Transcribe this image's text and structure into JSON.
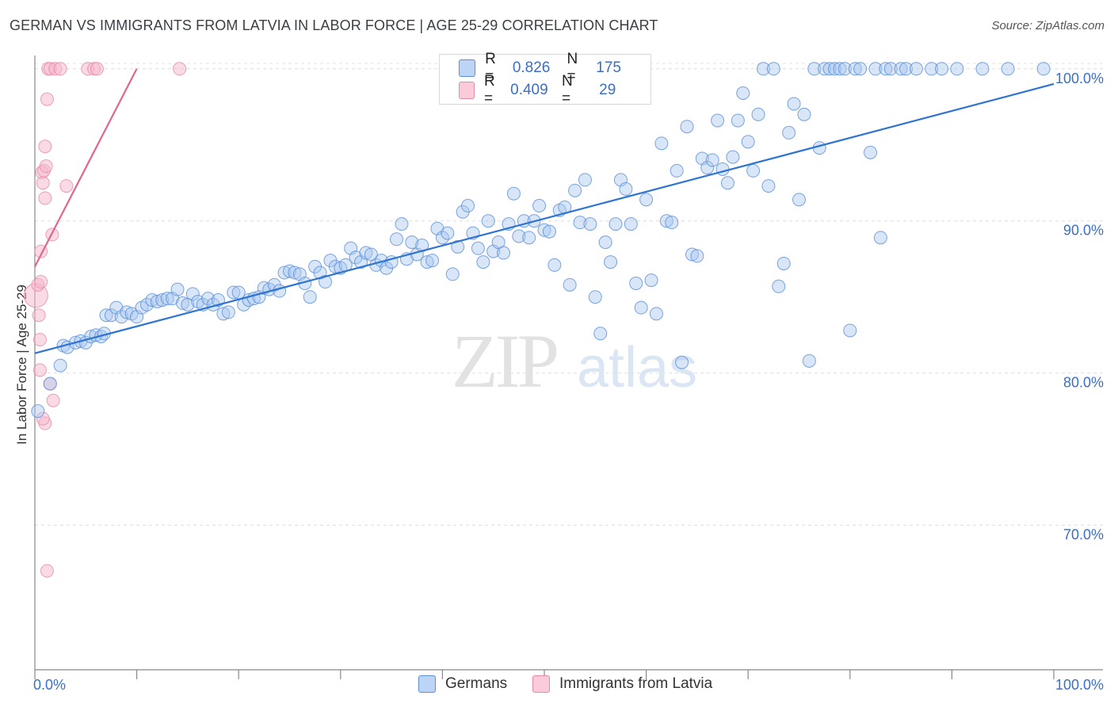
{
  "title": "GERMAN VS IMMIGRANTS FROM LATVIA IN LABOR FORCE | AGE 25-29 CORRELATION CHART",
  "source": "Source: ZipAtlas.com",
  "watermark": {
    "zip": "ZIP",
    "atlas": "atlas"
  },
  "colors": {
    "blue_fill": "#a9c7f0",
    "blue_stroke": "#5b8fd6",
    "blue_line": "#2f74d0",
    "pink_fill": "#f6b8cb",
    "pink_stroke": "#e88aa6",
    "pink_line": "#e0668f",
    "axis_text": "#3a6fc8",
    "grid": "#dddddd"
  },
  "legend": [
    {
      "r_label": "R =",
      "r_value": "0.826",
      "n_label": "N =",
      "n_value": "175"
    },
    {
      "r_label": "R =",
      "r_value": "0.409",
      "n_label": "N =",
      "n_value": "29"
    }
  ],
  "chart_data": {
    "type": "scatter",
    "title": "GERMAN VS IMMIGRANTS FROM LATVIA IN LABOR FORCE | AGE 25-29 CORRELATION CHART",
    "xlabel": "",
    "ylabel": "In Labor Force | Age 25-29",
    "xlim": [
      0,
      100
    ],
    "ylim": [
      60.5,
      101.5
    ],
    "x_tick_labels": [
      "0.0%",
      "100.0%"
    ],
    "y_ticks": [
      70,
      80,
      90,
      100
    ],
    "y_tick_labels": [
      "70.0%",
      "80.0%",
      "90.0%",
      "100.0%"
    ],
    "grid": true,
    "legend_position": "bottom",
    "series": [
      {
        "name": "Germans",
        "r": 0.826,
        "n": 175,
        "trend": {
          "x": [
            0,
            100
          ],
          "y": [
            81.3,
            99.0
          ]
        },
        "points": [
          [
            0.3,
            77.5
          ],
          [
            1.5,
            79.3
          ],
          [
            2.5,
            80.5
          ],
          [
            2.8,
            81.8
          ],
          [
            3.2,
            81.7
          ],
          [
            4,
            82.0
          ],
          [
            4.5,
            82.1
          ],
          [
            5,
            82.0
          ],
          [
            5.5,
            82.4
          ],
          [
            6,
            82.5
          ],
          [
            6.5,
            82.4
          ],
          [
            6.8,
            82.6
          ],
          [
            7,
            83.8
          ],
          [
            7.5,
            83.8
          ],
          [
            8,
            84.3
          ],
          [
            8.5,
            83.7
          ],
          [
            9,
            84.0
          ],
          [
            9.5,
            83.9
          ],
          [
            10,
            83.7
          ],
          [
            10.5,
            84.3
          ],
          [
            11,
            84.5
          ],
          [
            11.5,
            84.8
          ],
          [
            12,
            84.7
          ],
          [
            12.5,
            84.8
          ],
          [
            13,
            84.9
          ],
          [
            13.5,
            84.9
          ],
          [
            14,
            85.5
          ],
          [
            14.5,
            84.6
          ],
          [
            15,
            84.5
          ],
          [
            15.5,
            85.2
          ],
          [
            16,
            84.7
          ],
          [
            16.5,
            84.5
          ],
          [
            17,
            84.9
          ],
          [
            17.5,
            84.5
          ],
          [
            18,
            84.8
          ],
          [
            18.5,
            83.9
          ],
          [
            19,
            84.0
          ],
          [
            19.5,
            85.3
          ],
          [
            20,
            85.3
          ],
          [
            20.5,
            84.5
          ],
          [
            21,
            84.8
          ],
          [
            21.5,
            84.9
          ],
          [
            22,
            85.0
          ],
          [
            22.5,
            85.6
          ],
          [
            23,
            85.5
          ],
          [
            23.5,
            85.8
          ],
          [
            24,
            85.4
          ],
          [
            24.5,
            86.6
          ],
          [
            25,
            86.7
          ],
          [
            25.5,
            86.6
          ],
          [
            26,
            86.5
          ],
          [
            26.5,
            85.9
          ],
          [
            27,
            85.0
          ],
          [
            27.5,
            87.0
          ],
          [
            28,
            86.6
          ],
          [
            28.5,
            86.0
          ],
          [
            29,
            87.4
          ],
          [
            29.5,
            87.0
          ],
          [
            30,
            86.9
          ],
          [
            30.5,
            87.1
          ],
          [
            31,
            88.2
          ],
          [
            31.5,
            87.6
          ],
          [
            32,
            87.3
          ],
          [
            32.5,
            87.9
          ],
          [
            33,
            87.8
          ],
          [
            33.5,
            87.1
          ],
          [
            34,
            87.4
          ],
          [
            34.5,
            86.9
          ],
          [
            35,
            87.3
          ],
          [
            35.5,
            88.8
          ],
          [
            36,
            89.8
          ],
          [
            36.5,
            87.5
          ],
          [
            37,
            88.6
          ],
          [
            37.5,
            87.8
          ],
          [
            38,
            88.4
          ],
          [
            38.5,
            87.3
          ],
          [
            39,
            87.4
          ],
          [
            39.5,
            89.5
          ],
          [
            40,
            88.9
          ],
          [
            40.5,
            89.2
          ],
          [
            41,
            86.5
          ],
          [
            41.5,
            88.3
          ],
          [
            42,
            90.6
          ],
          [
            42.5,
            91.0
          ],
          [
            43,
            89.2
          ],
          [
            43.5,
            88.2
          ],
          [
            44,
            87.3
          ],
          [
            44.5,
            90.0
          ],
          [
            45,
            88.0
          ],
          [
            45.5,
            88.6
          ],
          [
            46,
            87.9
          ],
          [
            46.5,
            89.8
          ],
          [
            47,
            91.8
          ],
          [
            47.5,
            89.0
          ],
          [
            48,
            90.0
          ],
          [
            48.5,
            88.9
          ],
          [
            49,
            90.0
          ],
          [
            49.5,
            91.0
          ],
          [
            50,
            89.4
          ],
          [
            50.5,
            89.3
          ],
          [
            51,
            87.1
          ],
          [
            51.5,
            90.7
          ],
          [
            52,
            90.9
          ],
          [
            52.5,
            85.8
          ],
          [
            53,
            92.0
          ],
          [
            53.5,
            89.9
          ],
          [
            54,
            92.7
          ],
          [
            54.5,
            89.8
          ],
          [
            55,
            85.0
          ],
          [
            55.5,
            82.6
          ],
          [
            56,
            88.6
          ],
          [
            56.5,
            87.3
          ],
          [
            57,
            89.8
          ],
          [
            57.5,
            92.7
          ],
          [
            58,
            92.1
          ],
          [
            58.5,
            89.8
          ],
          [
            59,
            85.9
          ],
          [
            59.5,
            84.3
          ],
          [
            60,
            91.4
          ],
          [
            60.5,
            86.1
          ],
          [
            61,
            83.9
          ],
          [
            61.5,
            95.1
          ],
          [
            62,
            90.0
          ],
          [
            62.5,
            89.9
          ],
          [
            63,
            93.3
          ],
          [
            63.5,
            80.7
          ],
          [
            64,
            96.2
          ],
          [
            64.5,
            87.8
          ],
          [
            65,
            87.7
          ],
          [
            65.5,
            94.1
          ],
          [
            66,
            93.5
          ],
          [
            66.5,
            94.0
          ],
          [
            67,
            96.6
          ],
          [
            67.5,
            93.4
          ],
          [
            68,
            92.5
          ],
          [
            68.5,
            94.2
          ],
          [
            69,
            96.6
          ],
          [
            69.5,
            98.4
          ],
          [
            70,
            95.2
          ],
          [
            70.5,
            93.3
          ],
          [
            71,
            97.0
          ],
          [
            72,
            92.3
          ],
          [
            73,
            85.7
          ],
          [
            73.5,
            87.2
          ],
          [
            74,
            95.8
          ],
          [
            74.5,
            97.7
          ],
          [
            75,
            91.4
          ],
          [
            75.5,
            97.0
          ],
          [
            76,
            80.8
          ],
          [
            77,
            94.8
          ],
          [
            80,
            82.8
          ],
          [
            82,
            94.5
          ],
          [
            83,
            88.9
          ],
          [
            71.5,
            100
          ],
          [
            72.5,
            100
          ],
          [
            76.5,
            100
          ],
          [
            77.5,
            100
          ],
          [
            78,
            100
          ],
          [
            78.5,
            100
          ],
          [
            79,
            100
          ],
          [
            79.5,
            100
          ],
          [
            80.5,
            100
          ],
          [
            81,
            100
          ],
          [
            82.5,
            100
          ],
          [
            83.5,
            100
          ],
          [
            84,
            100
          ],
          [
            85,
            100
          ],
          [
            85.5,
            100
          ],
          [
            86.5,
            100
          ],
          [
            88,
            100
          ],
          [
            89,
            100
          ],
          [
            90.5,
            100
          ],
          [
            93,
            100
          ],
          [
            95.5,
            100
          ],
          [
            99,
            100
          ]
        ]
      },
      {
        "name": "Immigrants from Latvia",
        "r": 0.409,
        "n": 29,
        "trend": {
          "x": [
            0,
            10
          ],
          "y": [
            87.0,
            100.0
          ]
        },
        "points": [
          [
            0.1,
            85.1
          ],
          [
            0.3,
            85.8
          ],
          [
            0.4,
            83.8
          ],
          [
            0.5,
            82.2
          ],
          [
            0.5,
            80.2
          ],
          [
            0.6,
            86.0
          ],
          [
            0.6,
            88.0
          ],
          [
            0.7,
            93.2
          ],
          [
            0.8,
            92.5
          ],
          [
            0.9,
            93.3
          ],
          [
            1.0,
            91.5
          ],
          [
            1.0,
            94.9
          ],
          [
            1.1,
            93.6
          ],
          [
            1.2,
            98.0
          ],
          [
            1.3,
            100
          ],
          [
            1.5,
            100
          ],
          [
            1.5,
            79.3
          ],
          [
            1.7,
            89.1
          ],
          [
            1.8,
            78.2
          ],
          [
            1.0,
            76.7
          ],
          [
            0.8,
            77.0
          ],
          [
            1.2,
            67.0
          ],
          [
            2.0,
            100
          ],
          [
            2.5,
            100
          ],
          [
            3.1,
            92.3
          ],
          [
            5.2,
            100
          ],
          [
            5.8,
            100
          ],
          [
            6.1,
            100
          ],
          [
            14.2,
            100
          ]
        ]
      }
    ]
  }
}
